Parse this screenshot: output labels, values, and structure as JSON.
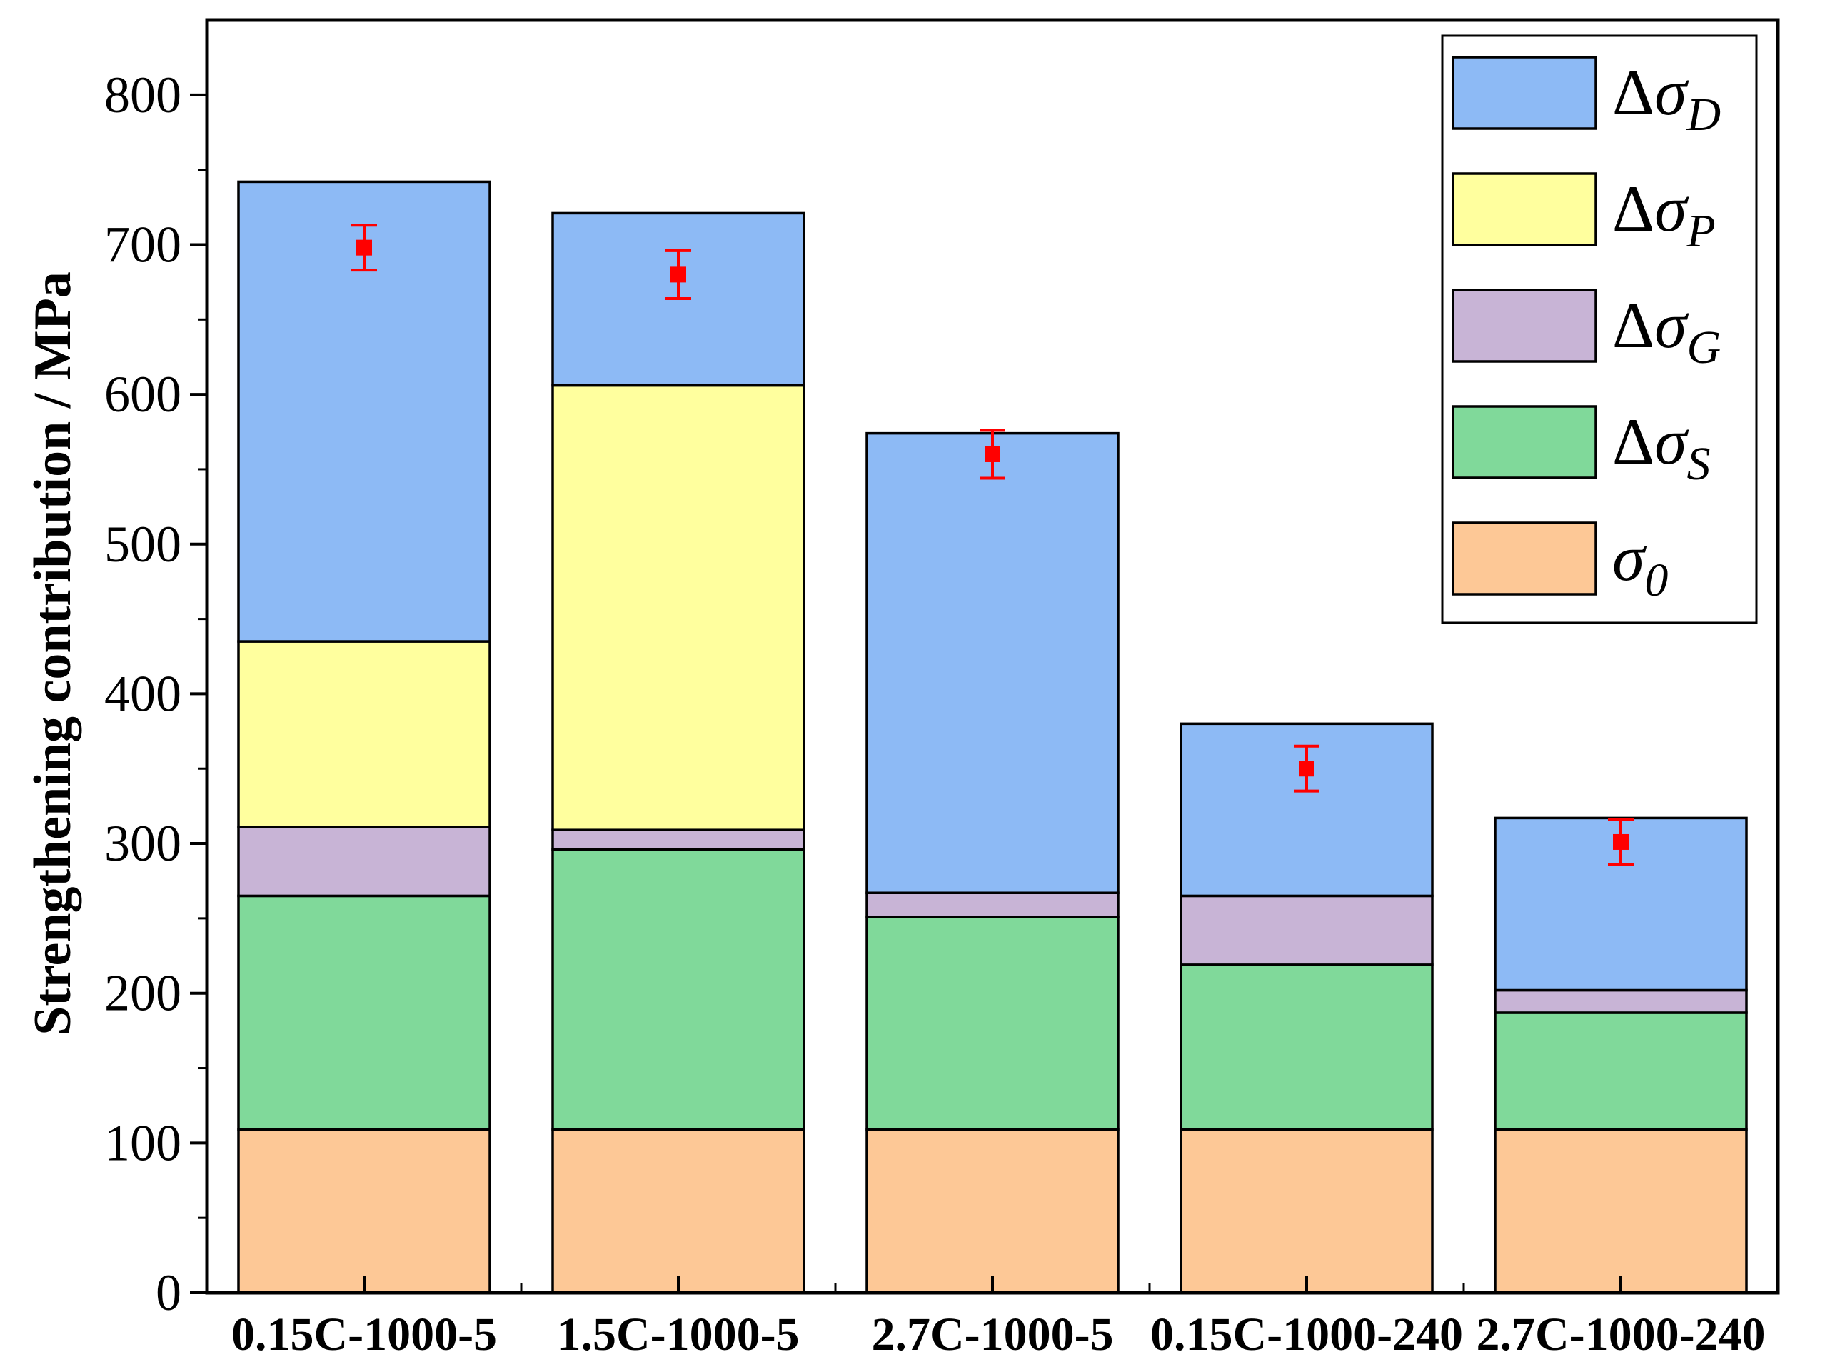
{
  "chart_data": {
    "type": "bar",
    "stacked": true,
    "title": "",
    "xlabel": "",
    "ylabel": "Strengthening contribution / MPa",
    "ylim": [
      0,
      850
    ],
    "yticks": [
      0,
      100,
      200,
      300,
      400,
      500,
      600,
      700,
      800
    ],
    "categories": [
      "0.15C-1000-5",
      "1.5C-1000-5",
      "2.7C-1000-5",
      "0.15C-1000-240",
      "2.7C-1000-240"
    ],
    "series": [
      {
        "key": "s0",
        "name": "σ0",
        "symbol": "σ",
        "subscript": "0",
        "delta": false,
        "color": "#FDC896",
        "values": [
          109,
          109,
          109,
          109,
          109
        ]
      },
      {
        "key": "sS",
        "name": "ΔσS",
        "symbol": "Δσ",
        "subscript": "S",
        "delta": true,
        "color": "#80D99A",
        "values": [
          156,
          187,
          142,
          110,
          78
        ]
      },
      {
        "key": "sG",
        "name": "ΔσG",
        "symbol": "Δσ",
        "subscript": "G",
        "delta": true,
        "color": "#C8B4D6",
        "values": [
          46,
          13,
          16,
          46,
          15
        ]
      },
      {
        "key": "sP",
        "name": "ΔσP",
        "symbol": "Δσ",
        "subscript": "P",
        "delta": true,
        "color": "#FFFF9E",
        "values": [
          124,
          297,
          0,
          0,
          0
        ]
      },
      {
        "key": "sD",
        "name": "ΔσD",
        "symbol": "Δσ",
        "subscript": "D",
        "delta": true,
        "color": "#8DBAF5",
        "values": [
          307,
          115,
          307,
          115,
          115
        ]
      }
    ],
    "measured": {
      "color": "#FF0000",
      "values": [
        698,
        680,
        560,
        350,
        301
      ],
      "errors": [
        15,
        16,
        16,
        15,
        15
      ]
    },
    "legend": {
      "position": "top-right",
      "order": [
        "sD",
        "sP",
        "sG",
        "sS",
        "s0"
      ]
    },
    "grid": false
  }
}
